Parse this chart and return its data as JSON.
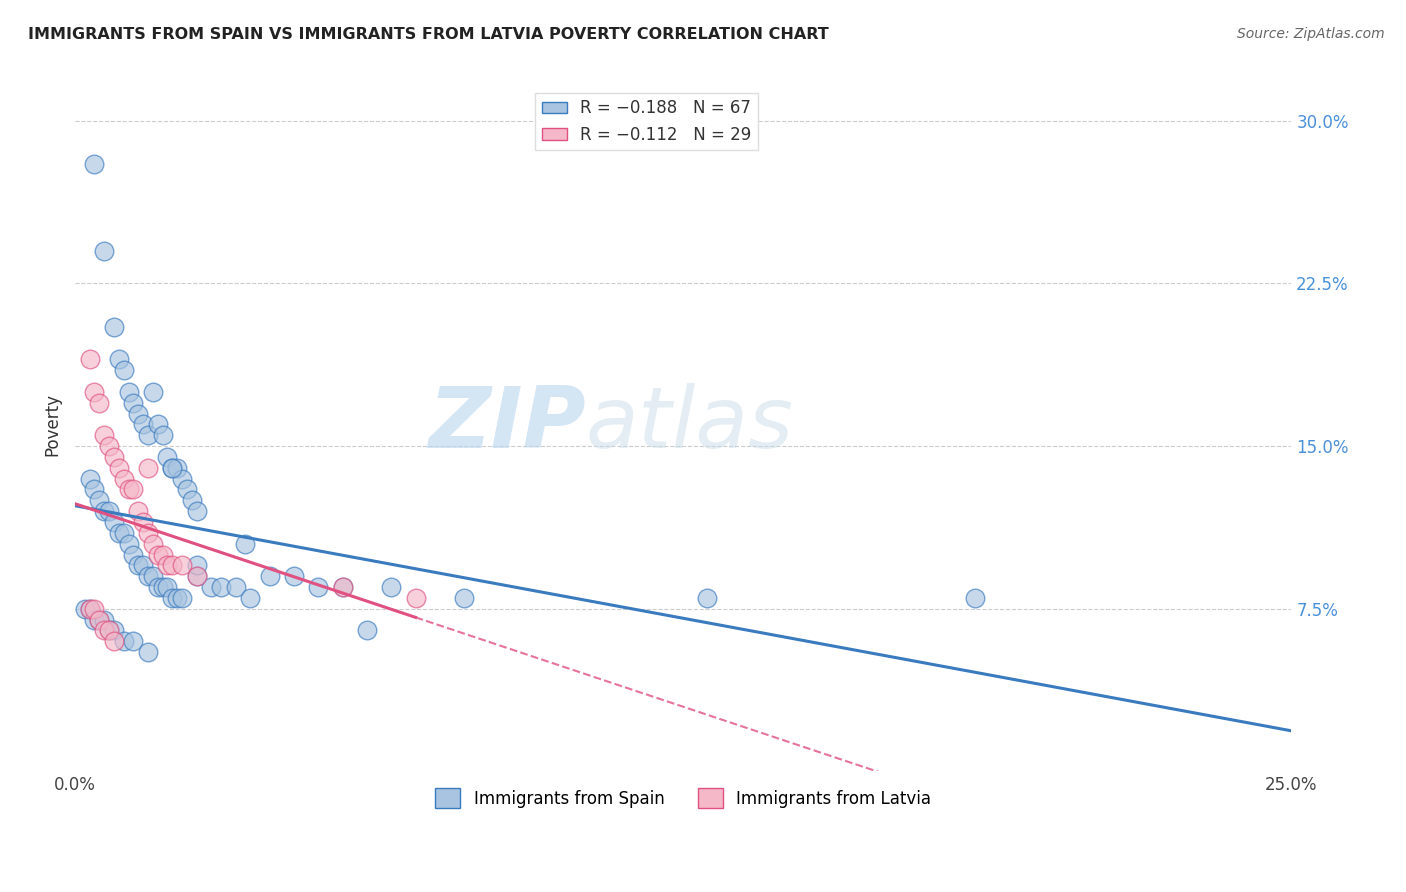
{
  "title": "IMMIGRANTS FROM SPAIN VS IMMIGRANTS FROM LATVIA POVERTY CORRELATION CHART",
  "source": "Source: ZipAtlas.com",
  "ylabel": "Poverty",
  "x_min": 0.0,
  "x_max": 0.25,
  "y_min": 0.0,
  "y_max": 0.32,
  "y_ticks_right": [
    0.075,
    0.15,
    0.225,
    0.3
  ],
  "y_tick_labels_right": [
    "7.5%",
    "15.0%",
    "22.5%",
    "30.0%"
  ],
  "legend_label1": "R = −0.188   N = 67",
  "legend_label2": "R = −0.112   N = 29",
  "legend_label_bottom1": "Immigrants from Spain",
  "legend_label_bottom2": "Immigrants from Latvia",
  "color_spain": "#a8c4e0",
  "color_latvia": "#f4b8c8",
  "color_spain_line": "#3a7abf",
  "color_latvia_line": "#e05080",
  "watermark_zip": "ZIP",
  "watermark_atlas": "atlas",
  "spain_x": [
    0.004,
    0.006,
    0.008,
    0.009,
    0.01,
    0.011,
    0.012,
    0.013,
    0.014,
    0.015,
    0.016,
    0.017,
    0.018,
    0.019,
    0.02,
    0.021,
    0.022,
    0.023,
    0.024,
    0.025,
    0.003,
    0.004,
    0.005,
    0.006,
    0.007,
    0.008,
    0.009,
    0.01,
    0.011,
    0.012,
    0.013,
    0.014,
    0.015,
    0.016,
    0.017,
    0.018,
    0.019,
    0.02,
    0.021,
    0.022,
    0.025,
    0.028,
    0.03,
    0.033,
    0.036,
    0.04,
    0.045,
    0.05,
    0.055,
    0.065,
    0.002,
    0.003,
    0.004,
    0.005,
    0.006,
    0.007,
    0.008,
    0.01,
    0.012,
    0.015,
    0.035,
    0.13,
    0.185,
    0.02,
    0.025,
    0.06,
    0.08
  ],
  "spain_y": [
    0.28,
    0.24,
    0.205,
    0.19,
    0.185,
    0.175,
    0.17,
    0.165,
    0.16,
    0.155,
    0.175,
    0.16,
    0.155,
    0.145,
    0.14,
    0.14,
    0.135,
    0.13,
    0.125,
    0.12,
    0.135,
    0.13,
    0.125,
    0.12,
    0.12,
    0.115,
    0.11,
    0.11,
    0.105,
    0.1,
    0.095,
    0.095,
    0.09,
    0.09,
    0.085,
    0.085,
    0.085,
    0.08,
    0.08,
    0.08,
    0.09,
    0.085,
    0.085,
    0.085,
    0.08,
    0.09,
    0.09,
    0.085,
    0.085,
    0.085,
    0.075,
    0.075,
    0.07,
    0.07,
    0.07,
    0.065,
    0.065,
    0.06,
    0.06,
    0.055,
    0.105,
    0.08,
    0.08,
    0.14,
    0.095,
    0.065,
    0.08
  ],
  "latvia_x": [
    0.003,
    0.004,
    0.005,
    0.006,
    0.007,
    0.008,
    0.009,
    0.01,
    0.011,
    0.012,
    0.013,
    0.014,
    0.015,
    0.016,
    0.017,
    0.018,
    0.019,
    0.02,
    0.022,
    0.025,
    0.003,
    0.004,
    0.005,
    0.006,
    0.007,
    0.008,
    0.015,
    0.055,
    0.07
  ],
  "latvia_y": [
    0.19,
    0.175,
    0.17,
    0.155,
    0.15,
    0.145,
    0.14,
    0.135,
    0.13,
    0.13,
    0.12,
    0.115,
    0.11,
    0.105,
    0.1,
    0.1,
    0.095,
    0.095,
    0.095,
    0.09,
    0.075,
    0.075,
    0.07,
    0.065,
    0.065,
    0.06,
    0.14,
    0.085,
    0.08
  ]
}
